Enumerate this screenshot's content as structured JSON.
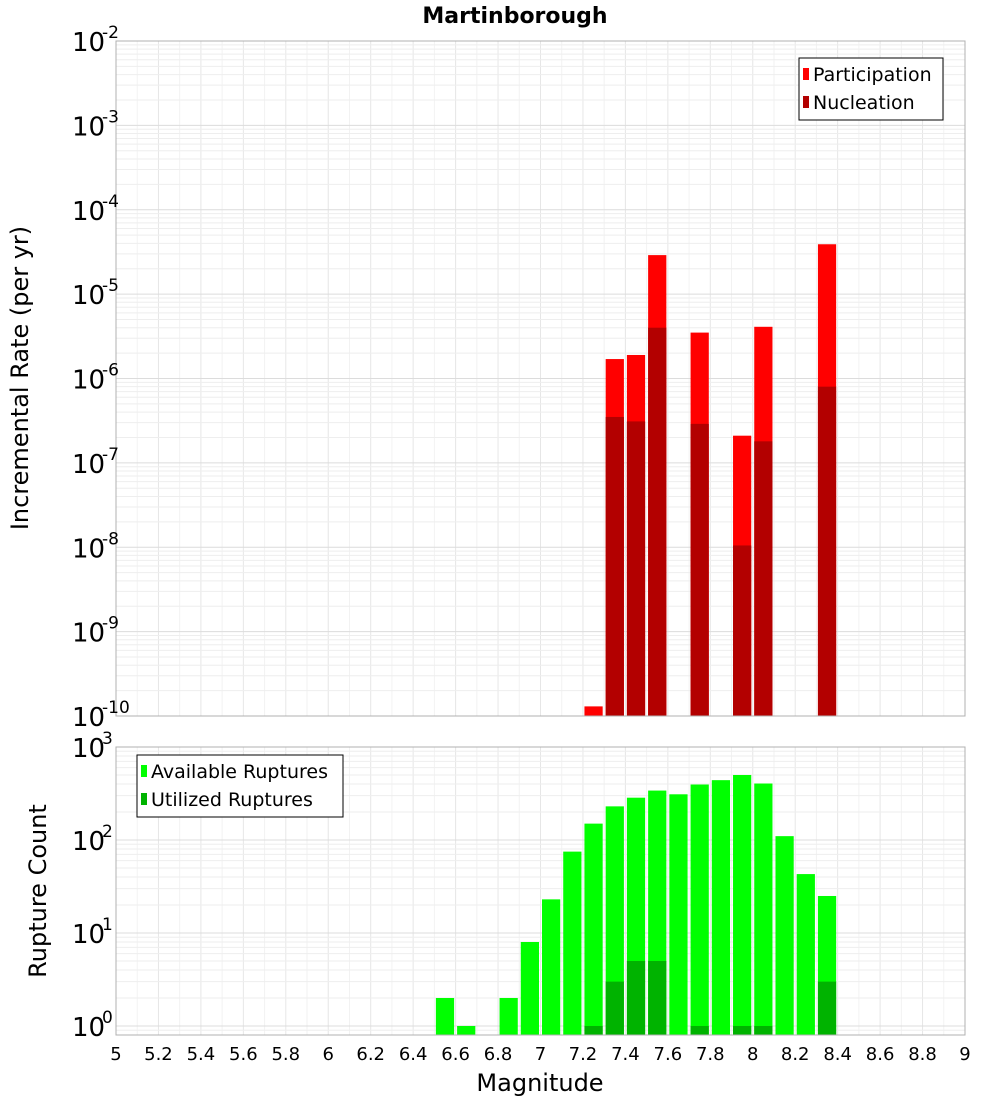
{
  "chart_data": [
    {
      "type": "bar",
      "title": "Martinborough",
      "xlabel": "",
      "ylabel": "Incremental Rate (per yr)",
      "y_scale": "log",
      "ylim": [
        1e-10,
        0.01
      ],
      "xlim": [
        5,
        9
      ],
      "bar_width": 0.1,
      "y_ticks": [
        {
          "base": "10",
          "exp": "-2",
          "value": 0.01
        },
        {
          "base": "10",
          "exp": "-3",
          "value": 0.001
        },
        {
          "base": "10",
          "exp": "-4",
          "value": 0.0001
        },
        {
          "base": "10",
          "exp": "-5",
          "value": 1e-05
        },
        {
          "base": "10",
          "exp": "-6",
          "value": 1e-06
        },
        {
          "base": "10",
          "exp": "-7",
          "value": 1e-07
        },
        {
          "base": "10",
          "exp": "-8",
          "value": 1e-08
        },
        {
          "base": "10",
          "exp": "-9",
          "value": 1e-09
        },
        {
          "base": "10",
          "exp": "-10",
          "value": 1e-10
        }
      ],
      "legend_position": "top-right",
      "series": [
        {
          "name": "Participation",
          "color": "#ff0000",
          "x": [
            7.25,
            7.35,
            7.45,
            7.55,
            7.75,
            7.95,
            8.05,
            8.35
          ],
          "values": [
            1.3e-10,
            1.7e-06,
            1.9e-06,
            2.9e-05,
            3.5e-06,
            2.1e-07,
            4.1e-06,
            3.9e-05
          ]
        },
        {
          "name": "Nucleation",
          "color": "#b30000",
          "x": [
            7.35,
            7.45,
            7.55,
            7.75,
            7.95,
            8.05,
            8.35
          ],
          "values": [
            3.5e-07,
            3.1e-07,
            4e-06,
            2.9e-07,
            1.05e-08,
            1.8e-07,
            8e-07
          ]
        }
      ]
    },
    {
      "type": "bar",
      "title": "",
      "xlabel": "Magnitude",
      "ylabel": "Rupture Count",
      "y_scale": "log",
      "ylim": [
        0.8,
        1000
      ],
      "xlim": [
        5,
        9
      ],
      "bar_width": 0.1,
      "x_tick_labels": [
        "5",
        "5.2",
        "5.4",
        "5.6",
        "5.8",
        "6",
        "6.2",
        "6.4",
        "6.6",
        "6.8",
        "7",
        "7.2",
        "7.4",
        "7.6",
        "7.8",
        "8",
        "8.2",
        "8.4",
        "8.6",
        "8.8",
        "9"
      ],
      "y_ticks": [
        {
          "base": "10",
          "exp": "3",
          "value": 1000
        },
        {
          "base": "10",
          "exp": "2",
          "value": 100
        },
        {
          "base": "10",
          "exp": "1",
          "value": 10
        },
        {
          "base": "10",
          "exp": "0",
          "value": 1
        }
      ],
      "legend_position": "top-left",
      "series": [
        {
          "name": "Available Ruptures",
          "color": "#00ff00",
          "x": [
            6.55,
            6.65,
            6.85,
            6.95,
            7.05,
            7.15,
            7.25,
            7.35,
            7.45,
            7.55,
            7.65,
            7.75,
            7.85,
            7.95,
            8.05,
            8.15,
            8.25,
            8.35
          ],
          "values": [
            2,
            1,
            2,
            8,
            23,
            75,
            150,
            230,
            285,
            340,
            310,
            395,
            440,
            500,
            405,
            110,
            43,
            25
          ]
        },
        {
          "name": "Utilized Ruptures",
          "color": "#00b300",
          "x": [
            7.25,
            7.35,
            7.45,
            7.55,
            7.75,
            7.95,
            8.05,
            8.35
          ],
          "values": [
            1,
            3,
            5,
            5,
            1,
            1,
            1,
            3
          ]
        }
      ]
    }
  ]
}
